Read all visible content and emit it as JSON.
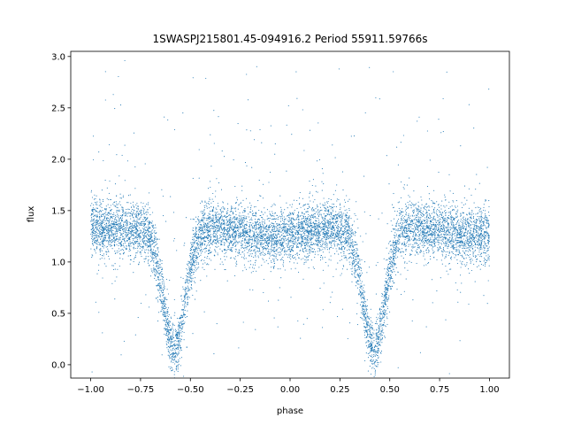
{
  "chart_data": {
    "type": "scatter",
    "title": "1SWASPJ215801.45-094916.2 Period 55911.59766s",
    "xlabel": "phase",
    "ylabel": "flux",
    "xlim": [
      -1.1,
      1.1
    ],
    "ylim": [
      -0.13,
      3.05
    ],
    "xticks": [
      -1.0,
      -0.75,
      -0.5,
      -0.25,
      0.0,
      0.25,
      0.5,
      0.75,
      1.0
    ],
    "xtick_labels": [
      "−1.00",
      "−0.75",
      "−0.50",
      "−0.25",
      "0.00",
      "0.25",
      "0.50",
      "0.75",
      "1.00"
    ],
    "yticks": [
      0.0,
      0.5,
      1.0,
      1.5,
      2.0,
      2.5,
      3.0
    ],
    "ytick_labels": [
      "0.0",
      "0.5",
      "1.0",
      "1.5",
      "2.0",
      "2.5",
      "3.0"
    ],
    "grid": false,
    "marker_color": "#1f77b4",
    "series": [
      {
        "description_points": "folded light curve, two cycles",
        "baseline_flux": 1.33,
        "primary_eclipse_phases": [
          -0.58,
          0.42
        ],
        "primary_eclipse_min_flux": 0.15,
        "secondary_eclipse_phases": [
          -0.08,
          0.92
        ],
        "secondary_eclipse_min_flux": 1.25
      }
    ]
  }
}
